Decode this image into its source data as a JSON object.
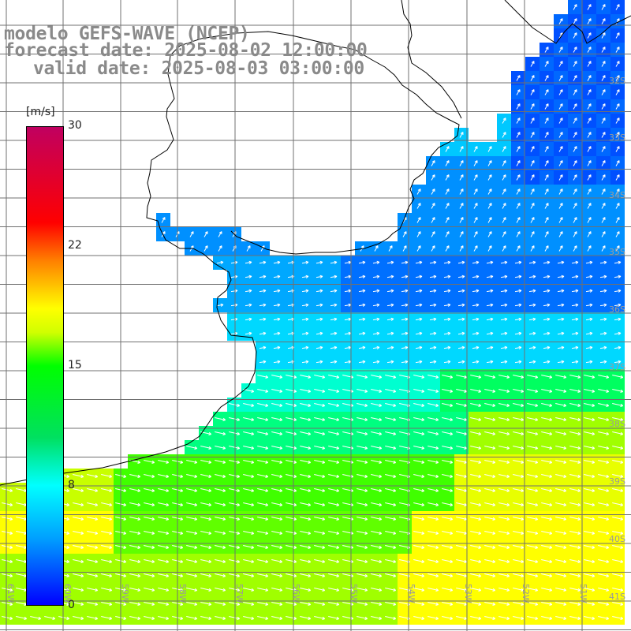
{
  "title": {
    "line1": "modelo GEFS-WAVE (NCEP)",
    "line2": "forecast date: 2025-08-02 12:00:00",
    "line3": "valid date: 2025-08-03 03:00:00"
  },
  "colorbar": {
    "unit": "[m/s]",
    "ticks": [
      "30",
      "22",
      "15",
      "8",
      "0"
    ],
    "min": 0,
    "max": 30,
    "colors": [
      "#0000ff",
      "#00a0ff",
      "#00ffff",
      "#00e060",
      "#00ff00",
      "#ffff00",
      "#ff8000",
      "#ff0000",
      "#c00060"
    ]
  },
  "latitude_labels": [
    "32S",
    "33S",
    "34S",
    "35S",
    "36S",
    "37S",
    "38S",
    "39S",
    "40S",
    "41S"
  ],
  "longitude_labels": [
    "61W",
    "60W",
    "59W",
    "58W",
    "57W",
    "56W",
    "55W",
    "54W",
    "53W",
    "52W",
    "51W"
  ],
  "colors": {
    "land": "#ffffff",
    "coastline": "#000000",
    "grid": "#707070",
    "arrows": "#ffffff",
    "title_text": "#8a8a8a"
  }
}
